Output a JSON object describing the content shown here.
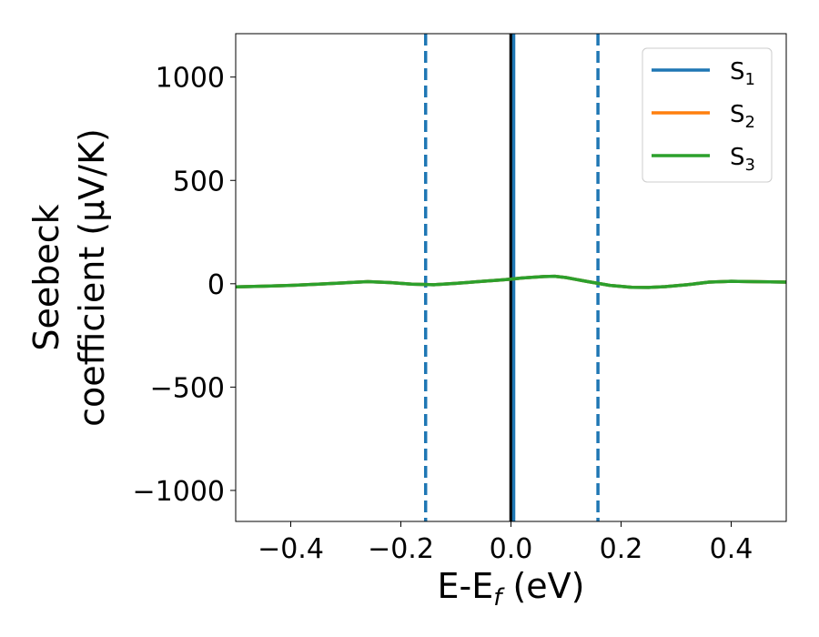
{
  "chart_data": {
    "type": "line",
    "xlabel": "E-E",
    "xlabel_sub": "f",
    "xlabel_unit": " (eV)",
    "ylabel_line1": "Seebeck",
    "ylabel_line2": "coefficient  (μV/K)",
    "xlim": [
      -0.5,
      0.5
    ],
    "ylim": [
      -1150,
      1210
    ],
    "xticks": [
      -0.4,
      -0.2,
      0.0,
      0.2,
      0.4
    ],
    "xtick_labels": [
      "−0.4",
      "−0.2",
      "0.0",
      "0.2",
      "0.4"
    ],
    "yticks": [
      1000,
      500,
      0,
      -500,
      -1000
    ],
    "ytick_labels": [
      "1000",
      "500",
      "0",
      "−500",
      "−1000"
    ],
    "grid": false,
    "legend_position": "top-right",
    "x": [
      -0.5,
      -0.45,
      -0.4,
      -0.35,
      -0.3,
      -0.26,
      -0.22,
      -0.18,
      -0.14,
      -0.1,
      -0.06,
      -0.02,
      0.0,
      0.02,
      0.06,
      0.08,
      0.1,
      0.14,
      0.18,
      0.22,
      0.25,
      0.28,
      0.32,
      0.36,
      0.4,
      0.44,
      0.5
    ],
    "series": [
      {
        "name": "S",
        "sub": "1",
        "color": "#1f77b4",
        "values": [
          -15,
          -12,
          -8,
          -2,
          5,
          10,
          6,
          -2,
          -5,
          2,
          10,
          18,
          22,
          28,
          35,
          36,
          30,
          10,
          -8,
          -17,
          -18,
          -14,
          -5,
          8,
          12,
          10,
          8
        ]
      },
      {
        "name": "S",
        "sub": "2",
        "color": "#ff7f0e",
        "values": [
          -15,
          -12,
          -8,
          -2,
          5,
          10,
          6,
          -2,
          -5,
          2,
          10,
          18,
          22,
          28,
          35,
          36,
          30,
          10,
          -8,
          -17,
          -18,
          -14,
          -5,
          8,
          12,
          10,
          8
        ]
      },
      {
        "name": "S",
        "sub": "3",
        "color": "#2ca02c",
        "values": [
          -15,
          -12,
          -8,
          -2,
          5,
          10,
          6,
          -2,
          -5,
          2,
          10,
          18,
          22,
          28,
          35,
          36,
          30,
          10,
          -8,
          -17,
          -18,
          -14,
          -5,
          8,
          12,
          10,
          8
        ]
      }
    ],
    "vlines": [
      {
        "x": 0.0,
        "color": "#000000",
        "style": "solid"
      },
      {
        "x": 0.005,
        "color": "#1f77b4",
        "style": "solid"
      },
      {
        "x": -0.155,
        "color": "#1f77b4",
        "style": "dashed"
      },
      {
        "x": 0.158,
        "color": "#1f77b4",
        "style": "dashed"
      }
    ]
  }
}
